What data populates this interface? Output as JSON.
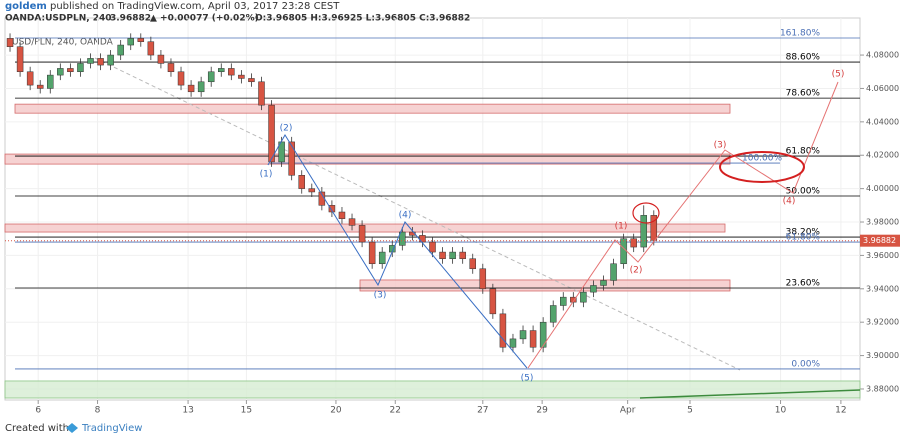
{
  "header": {
    "author": "goldem",
    "published": "published on TradingView.com, April 03, 2017 23:28 CEST",
    "symbol": "OANDA:USDPLN, 240",
    "price": "3.96882",
    "change": "▲ +0.00077 (+0.02%)",
    "ohlc": "O:3.96805 H:3.96925 L:3.96805 C:3.96882",
    "watermark": "USD/PLN, 240, OANDA"
  },
  "footer": {
    "created": "Created with",
    "brand": "TradingView"
  },
  "chart_data": {
    "type": "candlestick",
    "grid": true,
    "up_color": "#53a36c",
    "down_color": "#d75442",
    "xlim": [
      -0.5,
      84.5
    ],
    "xticks": [
      {
        "value": 2.8,
        "label": "6"
      },
      {
        "value": 8.7,
        "label": "8"
      },
      {
        "value": 17.7,
        "label": "13"
      },
      {
        "value": 23.5,
        "label": "15"
      },
      {
        "value": 32.4,
        "label": "20"
      },
      {
        "value": 38.3,
        "label": "22"
      },
      {
        "value": 47.0,
        "label": "27"
      },
      {
        "value": 52.9,
        "label": "29"
      },
      {
        "value": 61.4,
        "label": "Apr"
      },
      {
        "value": 67.6,
        "label": "5"
      },
      {
        "value": 76.6,
        "label": "10"
      },
      {
        "value": 82.6,
        "label": "12"
      }
    ],
    "ylim": [
      3.8734,
      4.1022
    ],
    "yticks": [
      {
        "value": 3.88,
        "label": "3.88000"
      },
      {
        "value": 3.9,
        "label": "3.90000"
      },
      {
        "value": 3.92,
        "label": "3.92000"
      },
      {
        "value": 3.94,
        "label": "3.94000"
      },
      {
        "value": 3.96,
        "label": "3.96000"
      },
      {
        "value": 3.98,
        "label": "3.98000"
      },
      {
        "value": 4.0,
        "label": "4.00000"
      },
      {
        "value": 4.02,
        "label": "4.02000"
      },
      {
        "value": 4.04,
        "label": "4.04000"
      },
      {
        "value": 4.06,
        "label": "4.06000"
      },
      {
        "value": 4.08,
        "label": "4.08000"
      }
    ],
    "open": [
      4.09,
      4.085,
      4.07,
      4.062,
      4.06,
      4.068,
      4.072,
      4.07,
      4.075,
      4.078,
      4.074,
      4.08,
      4.086,
      4.09,
      4.088,
      4.08,
      4.075,
      4.07,
      4.062,
      4.058,
      4.064,
      4.07,
      4.072,
      4.068,
      4.066,
      4.064,
      4.05,
      4.016,
      4.028,
      4.008,
      4.0,
      3.998,
      3.99,
      3.986,
      3.982,
      3.978,
      3.968,
      3.955,
      3.962,
      3.966,
      3.974,
      3.972,
      3.968,
      3.962,
      3.958,
      3.962,
      3.958,
      3.952,
      3.94,
      3.925,
      3.905,
      3.91,
      3.915,
      3.905,
      3.92,
      3.93,
      3.935,
      3.932,
      3.938,
      3.942,
      3.945,
      3.955,
      3.97,
      3.965,
      3.984
    ],
    "high": [
      4.093,
      4.088,
      4.073,
      4.065,
      4.071,
      4.075,
      4.075,
      4.078,
      4.081,
      4.081,
      4.083,
      4.089,
      4.093,
      4.093,
      4.091,
      4.083,
      4.078,
      4.073,
      4.065,
      4.067,
      4.073,
      4.075,
      4.075,
      4.071,
      4.069,
      4.067,
      4.053,
      4.031,
      4.031,
      4.011,
      4.003,
      4.001,
      3.993,
      3.989,
      3.985,
      3.981,
      3.971,
      3.965,
      3.969,
      3.977,
      3.977,
      3.975,
      3.971,
      3.965,
      3.965,
      3.965,
      3.961,
      3.955,
      3.943,
      3.928,
      3.913,
      3.918,
      3.918,
      3.923,
      3.933,
      3.938,
      3.938,
      3.941,
      3.945,
      3.948,
      3.958,
      3.973,
      3.973,
      3.99,
      3.987
    ],
    "low": [
      4.082,
      4.067,
      4.059,
      4.057,
      4.057,
      4.065,
      4.067,
      4.067,
      4.072,
      4.071,
      4.071,
      4.077,
      4.083,
      4.085,
      4.077,
      4.072,
      4.067,
      4.059,
      4.055,
      4.055,
      4.061,
      4.067,
      4.065,
      4.063,
      4.061,
      4.047,
      4.013,
      4.013,
      4.005,
      3.997,
      3.995,
      3.987,
      3.983,
      3.979,
      3.975,
      3.965,
      3.952,
      3.952,
      3.959,
      3.963,
      3.969,
      3.965,
      3.959,
      3.955,
      3.955,
      3.955,
      3.949,
      3.937,
      3.922,
      3.902,
      3.902,
      3.907,
      3.902,
      3.902,
      3.917,
      3.927,
      3.929,
      3.929,
      3.935,
      3.939,
      3.942,
      3.952,
      3.962,
      3.962,
      3.966
    ],
    "close": [
      4.085,
      4.07,
      4.062,
      4.06,
      4.068,
      4.072,
      4.07,
      4.075,
      4.078,
      4.074,
      4.08,
      4.086,
      4.09,
      4.088,
      4.08,
      4.075,
      4.07,
      4.062,
      4.058,
      4.064,
      4.07,
      4.072,
      4.068,
      4.066,
      4.064,
      4.05,
      4.016,
      4.028,
      4.008,
      4.0,
      3.998,
      3.99,
      3.986,
      3.982,
      3.978,
      3.968,
      3.955,
      3.962,
      3.966,
      3.974,
      3.972,
      3.968,
      3.962,
      3.958,
      3.962,
      3.958,
      3.952,
      3.94,
      3.925,
      3.905,
      3.91,
      3.915,
      3.905,
      3.92,
      3.93,
      3.935,
      3.932,
      3.938,
      3.942,
      3.945,
      3.955,
      3.97,
      3.965,
      3.984,
      3.969
    ],
    "last_price": 3.96882,
    "levels": [
      {
        "label": "161.80%",
        "value": 4.0902,
        "color": "#4a6fb5"
      },
      {
        "label": "88.60%",
        "value": 4.0758,
        "color": "#000000"
      },
      {
        "label": "78.60%",
        "value": 4.0542,
        "color": "#000000"
      },
      {
        "label": "61.80%",
        "value": 4.0195,
        "color": "#000000"
      },
      {
        "label": "100.00%",
        "value": 4.0153,
        "color": "#4a6fb5"
      },
      {
        "label": "50.00%",
        "value": 3.9956,
        "color": "#000000"
      },
      {
        "label": "38.20%",
        "value": 3.971,
        "color": "#000000"
      },
      {
        "label": "61.80%",
        "value": 3.968,
        "color": "#4a6fb5"
      },
      {
        "label": "23.60%",
        "value": 3.9405,
        "color": "#000000"
      },
      {
        "label": "0.00%",
        "value": 3.892,
        "color": "#4a6fb5"
      }
    ],
    "zones": [
      {
        "range": [
          4.0452,
          4.0506
        ],
        "color": "#f4c7c7"
      },
      {
        "range": [
          4.0147,
          4.0207
        ],
        "color": "#f4c7c7"
      },
      {
        "range": [
          3.974,
          3.9788
        ],
        "color": "#f4c7c7"
      },
      {
        "range": [
          3.9387,
          3.9453
        ],
        "color": "#f4c7c7"
      },
      {
        "range": [
          3.8746,
          3.8848
        ],
        "color": "#d6ecd2"
      }
    ],
    "blue_waves": [
      "(1)",
      "(2)",
      "(3)",
      "(4)",
      "(5)"
    ],
    "red_waves": [
      "(1)",
      "(2)",
      "(3)",
      "(4)",
      "(5)"
    ]
  }
}
